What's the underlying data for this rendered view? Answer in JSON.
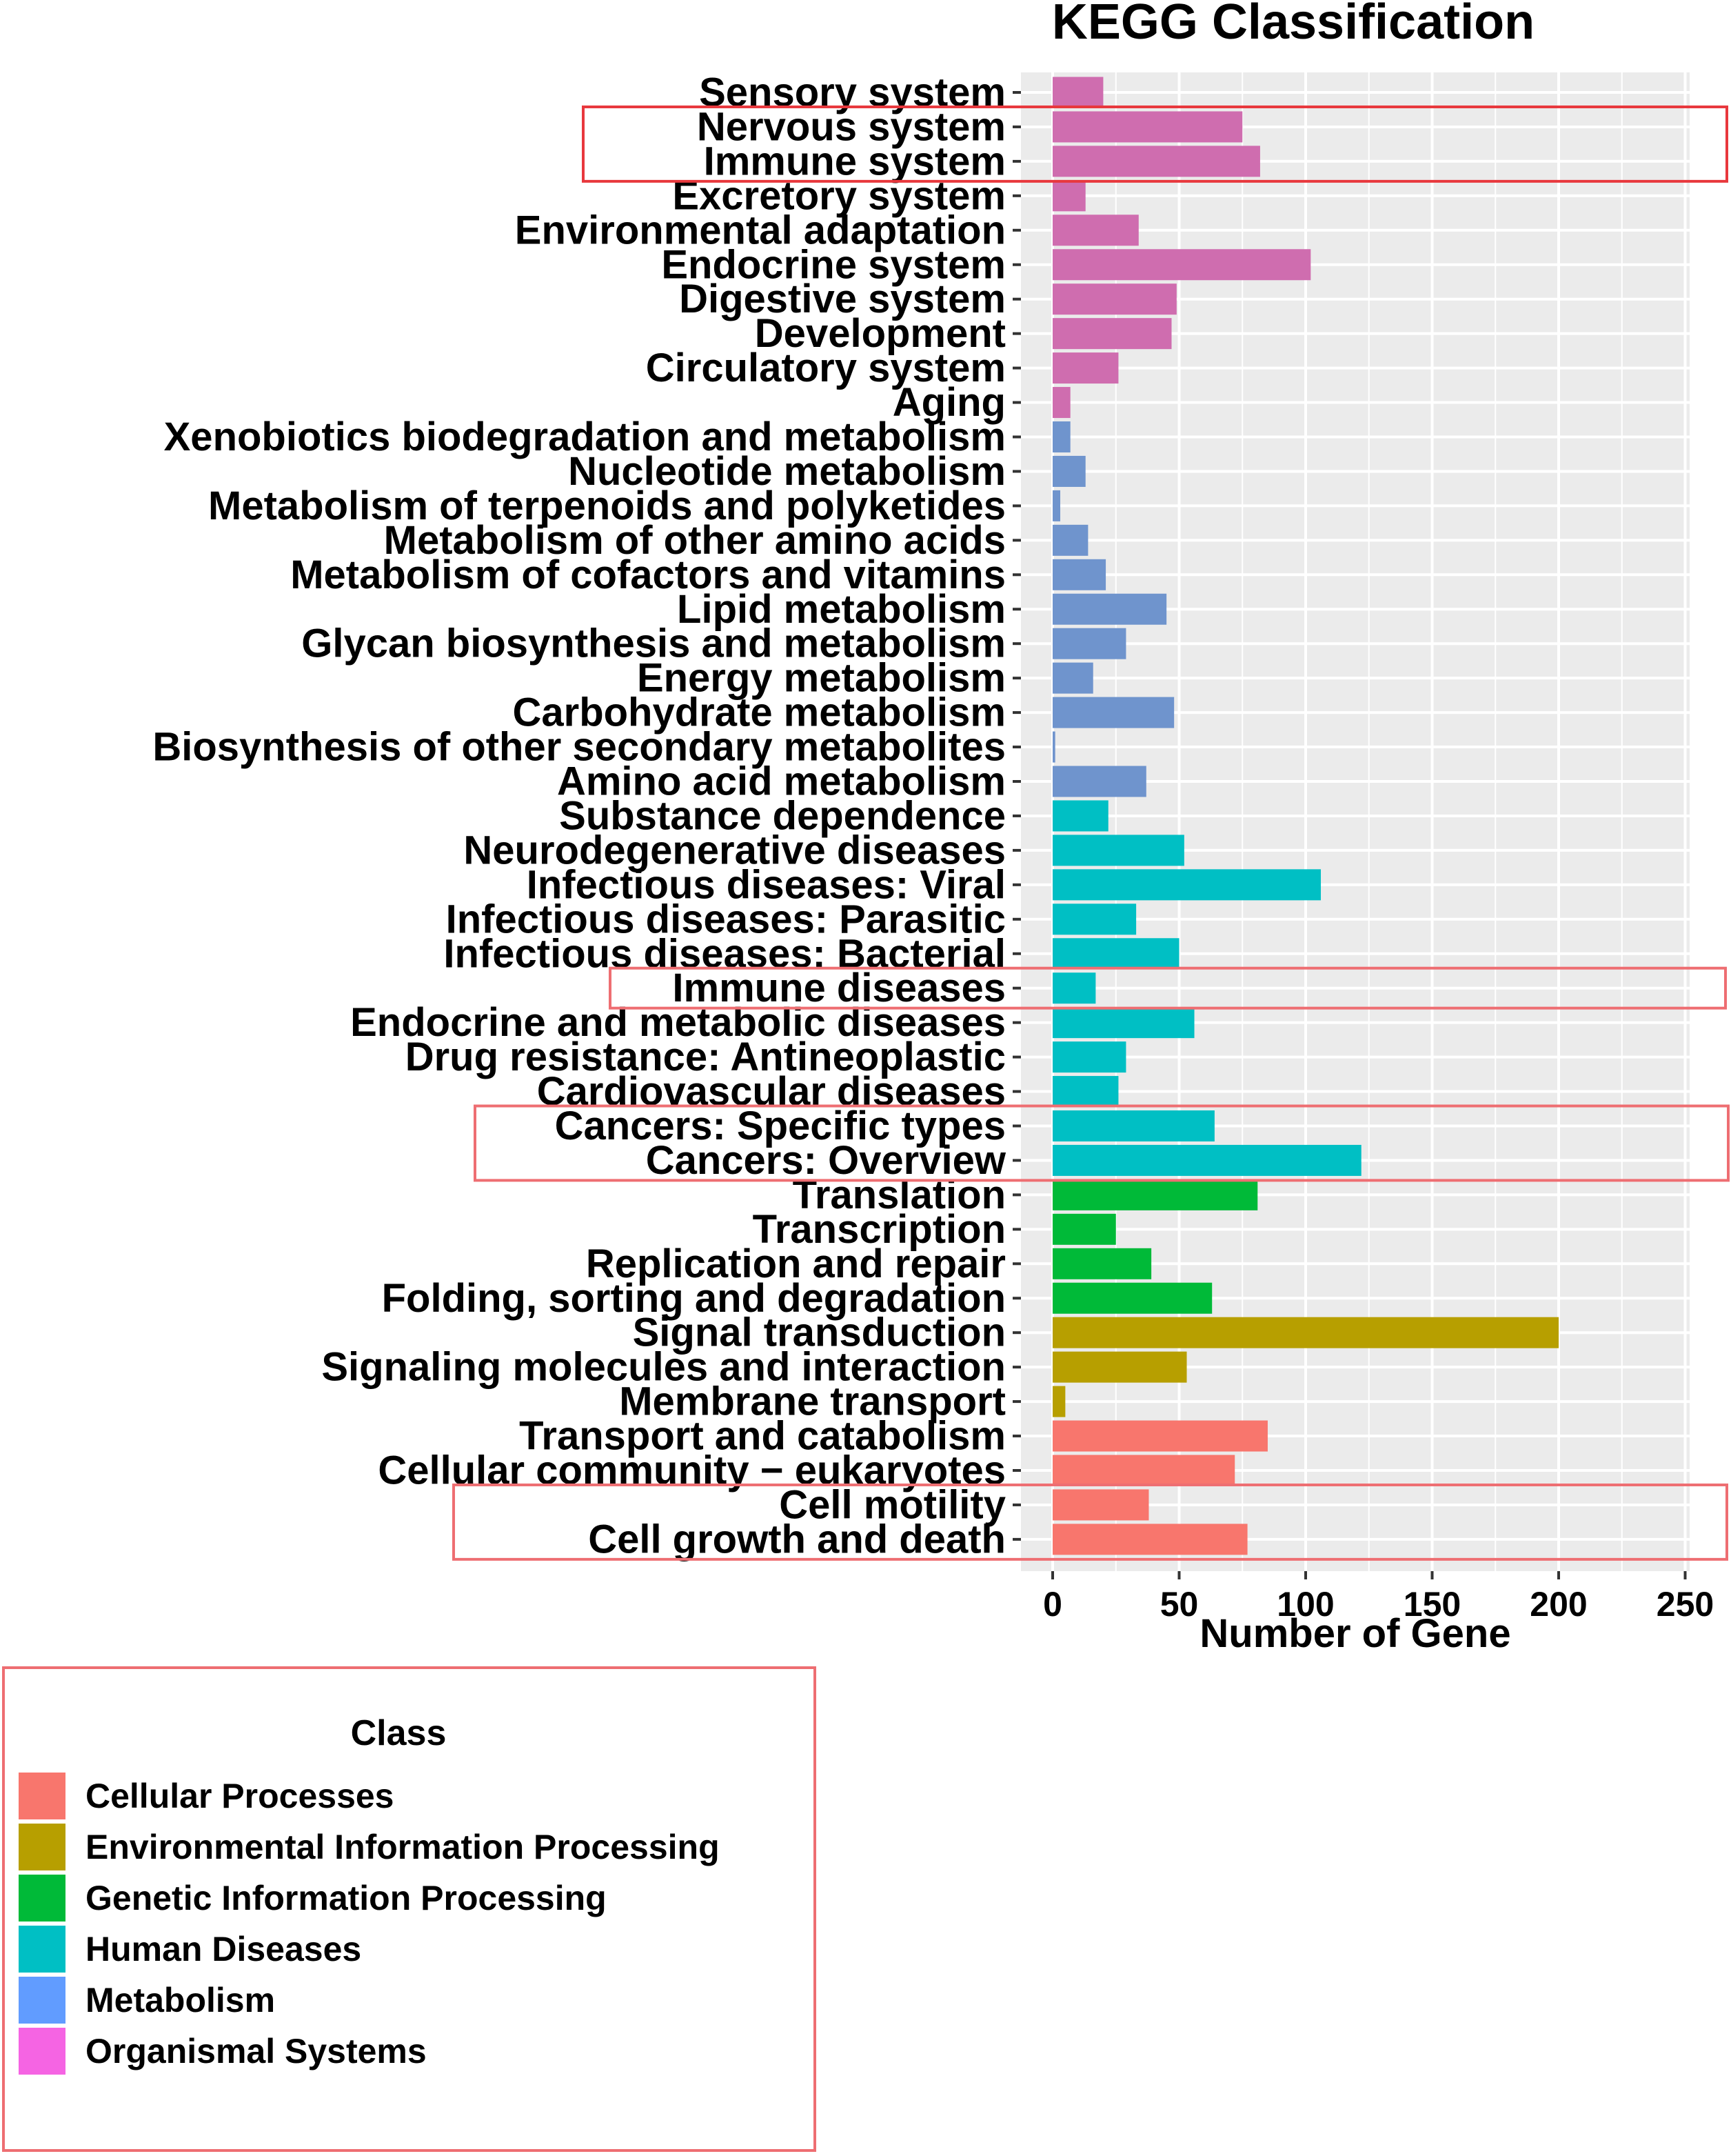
{
  "chart_data": {
    "type": "bar",
    "orientation": "horizontal",
    "title": "KEGG Classification",
    "xlabel": "Number of Gene",
    "ylabel": "",
    "xlim": [
      0,
      250
    ],
    "xticks": [
      0,
      50,
      100,
      150,
      200,
      250
    ],
    "grid": true,
    "legend": {
      "title": "Class",
      "placement": "bottom-left",
      "entries": [
        {
          "name": "Cellular Processes",
          "color": "#F8766D"
        },
        {
          "name": "Environmental Information Processing",
          "color": "#B79F00"
        },
        {
          "name": "Genetic Information Processing",
          "color": "#00BA38"
        },
        {
          "name": "Human Diseases",
          "color": "#00BFC4"
        },
        {
          "name": "Metabolism",
          "color": "#619CFF"
        },
        {
          "name": "Organismal Systems",
          "color": "#F564E3"
        }
      ]
    },
    "colors": {
      "Cellular Processes": "#F8766D",
      "Environmental Information Processing": "#B79F00",
      "Genetic Information Processing": "#00BA38",
      "Human Diseases": "#00BFC4",
      "Metabolism": "#6F94CD",
      "Organismal Systems": "#CF6DAF"
    },
    "categories": [
      {
        "label": "Sensory system",
        "value": 20,
        "class": "Organismal Systems"
      },
      {
        "label": "Nervous system",
        "value": 75,
        "class": "Organismal Systems"
      },
      {
        "label": "Immune system",
        "value": 82,
        "class": "Organismal Systems"
      },
      {
        "label": "Excretory system",
        "value": 13,
        "class": "Organismal Systems"
      },
      {
        "label": "Environmental adaptation",
        "value": 34,
        "class": "Organismal Systems"
      },
      {
        "label": "Endocrine system",
        "value": 102,
        "class": "Organismal Systems"
      },
      {
        "label": "Digestive system",
        "value": 49,
        "class": "Organismal Systems"
      },
      {
        "label": "Development",
        "value": 47,
        "class": "Organismal Systems"
      },
      {
        "label": "Circulatory system",
        "value": 26,
        "class": "Organismal Systems"
      },
      {
        "label": "Aging",
        "value": 7,
        "class": "Organismal Systems"
      },
      {
        "label": "Xenobiotics biodegradation and metabolism",
        "value": 7,
        "class": "Metabolism"
      },
      {
        "label": "Nucleotide metabolism",
        "value": 13,
        "class": "Metabolism"
      },
      {
        "label": "Metabolism of terpenoids and polyketides",
        "value": 3,
        "class": "Metabolism"
      },
      {
        "label": "Metabolism of other amino acids",
        "value": 14,
        "class": "Metabolism"
      },
      {
        "label": "Metabolism of cofactors and vitamins",
        "value": 21,
        "class": "Metabolism"
      },
      {
        "label": "Lipid metabolism",
        "value": 45,
        "class": "Metabolism"
      },
      {
        "label": "Glycan biosynthesis and metabolism",
        "value": 29,
        "class": "Metabolism"
      },
      {
        "label": "Energy metabolism",
        "value": 16,
        "class": "Metabolism"
      },
      {
        "label": "Carbohydrate metabolism",
        "value": 48,
        "class": "Metabolism"
      },
      {
        "label": "Biosynthesis of other secondary metabolites",
        "value": 1,
        "class": "Metabolism"
      },
      {
        "label": "Amino acid metabolism",
        "value": 37,
        "class": "Metabolism"
      },
      {
        "label": "Substance dependence",
        "value": 22,
        "class": "Human Diseases"
      },
      {
        "label": "Neurodegenerative diseases",
        "value": 52,
        "class": "Human Diseases"
      },
      {
        "label": "Infectious diseases: Viral",
        "value": 106,
        "class": "Human Diseases"
      },
      {
        "label": "Infectious diseases: Parasitic",
        "value": 33,
        "class": "Human Diseases"
      },
      {
        "label": "Infectious diseases: Bacterial",
        "value": 50,
        "class": "Human Diseases"
      },
      {
        "label": "Immune diseases",
        "value": 17,
        "class": "Human Diseases"
      },
      {
        "label": "Endocrine and metabolic diseases",
        "value": 56,
        "class": "Human Diseases"
      },
      {
        "label": "Drug resistance: Antineoplastic",
        "value": 29,
        "class": "Human Diseases"
      },
      {
        "label": "Cardiovascular diseases",
        "value": 26,
        "class": "Human Diseases"
      },
      {
        "label": "Cancers: Specific types",
        "value": 64,
        "class": "Human Diseases"
      },
      {
        "label": "Cancers: Overview",
        "value": 122,
        "class": "Human Diseases"
      },
      {
        "label": "Translation",
        "value": 81,
        "class": "Genetic Information Processing"
      },
      {
        "label": "Transcription",
        "value": 25,
        "class": "Genetic Information Processing"
      },
      {
        "label": "Replication and repair",
        "value": 39,
        "class": "Genetic Information Processing"
      },
      {
        "label": "Folding, sorting and degradation",
        "value": 63,
        "class": "Genetic Information Processing"
      },
      {
        "label": "Signal transduction",
        "value": 200,
        "class": "Environmental Information Processing"
      },
      {
        "label": "Signaling molecules and interaction",
        "value": 53,
        "class": "Environmental Information Processing"
      },
      {
        "label": "Membrane transport",
        "value": 5,
        "class": "Environmental Information Processing"
      },
      {
        "label": "Transport and catabolism",
        "value": 85,
        "class": "Cellular Processes"
      },
      {
        "label": "Cellular community − eukaryotes",
        "value": 72,
        "class": "Cellular Processes"
      },
      {
        "label": "Cell motility",
        "value": 38,
        "class": "Cellular Processes"
      },
      {
        "label": "Cell growth and death",
        "value": 77,
        "class": "Cellular Processes"
      }
    ],
    "highlights": [
      {
        "from": "Nervous system",
        "to": "Immune system",
        "color": "#E8383D"
      },
      {
        "from": "Immune diseases",
        "to": "Immune diseases",
        "color": "#EE6E72"
      },
      {
        "from": "Cancers: Specific types",
        "to": "Cancers: Overview",
        "color": "#EE6E72"
      },
      {
        "from": "Cell motility",
        "to": "Cell growth and death",
        "color": "#EE6E72"
      }
    ]
  }
}
